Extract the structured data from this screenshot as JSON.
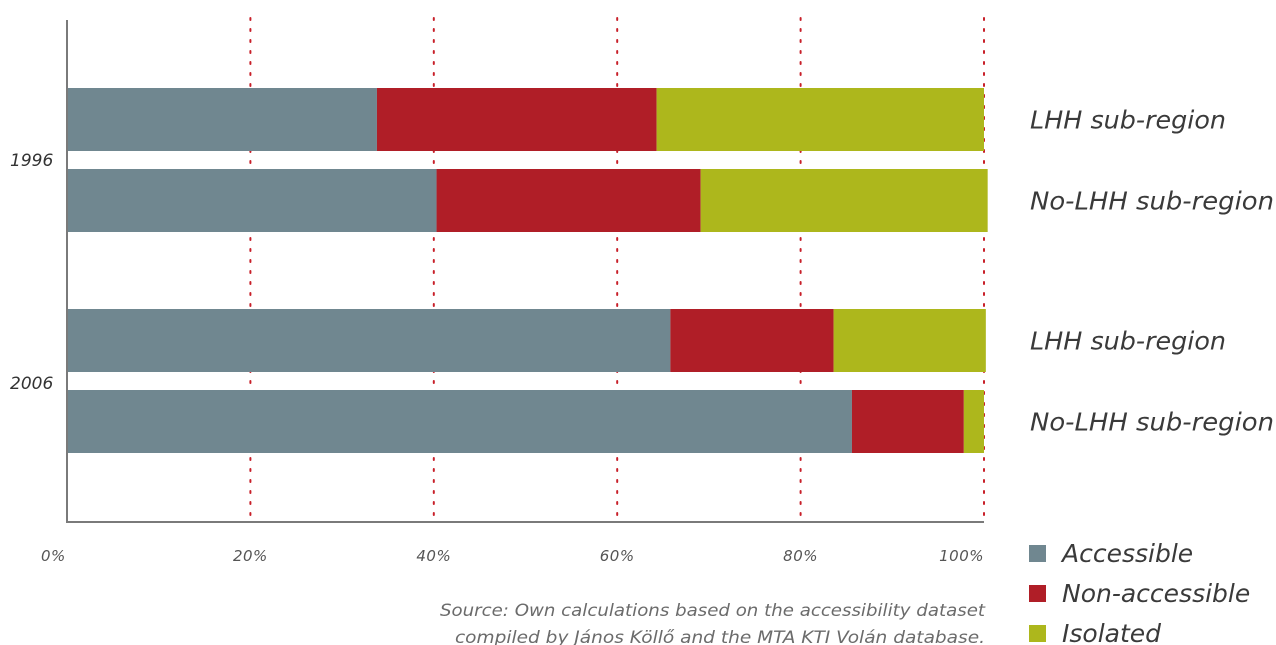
{
  "chart_data": {
    "type": "bar",
    "orientation": "horizontal",
    "stacked": true,
    "groups": [
      {
        "label": "1996",
        "bars": [
          {
            "label": "LHH sub-region",
            "values": [
              33.8,
              30.5,
              35.7
            ]
          },
          {
            "label": "No-LHH sub-region",
            "values": [
              40.3,
              28.8,
              31.3
            ]
          }
        ]
      },
      {
        "label": "2006",
        "bars": [
          {
            "label": "LHH sub-region",
            "values": [
              65.8,
              17.8,
              16.6
            ]
          },
          {
            "label": "No-LHH sub-region",
            "values": [
              85.6,
              12.2,
              2.2
            ]
          }
        ]
      }
    ],
    "series": [
      {
        "name": "Accessible",
        "color": "#708790"
      },
      {
        "name": "Non-accessible",
        "color": "#b01e27"
      },
      {
        "name": "Isolated",
        "color": "#adb71c"
      }
    ],
    "x_ticks": [
      "0%",
      "20%",
      "40%",
      "60%",
      "80%",
      "100%"
    ],
    "xlim": [
      0,
      100
    ],
    "grid": "vertical dotted",
    "grid_color": "#c8202a",
    "legend": "bottom-right",
    "source_lines": [
      "Source: Own calculations based on the accessibility dataset",
      "compiled by János Köllő and the MTA KTI Volán database."
    ]
  }
}
